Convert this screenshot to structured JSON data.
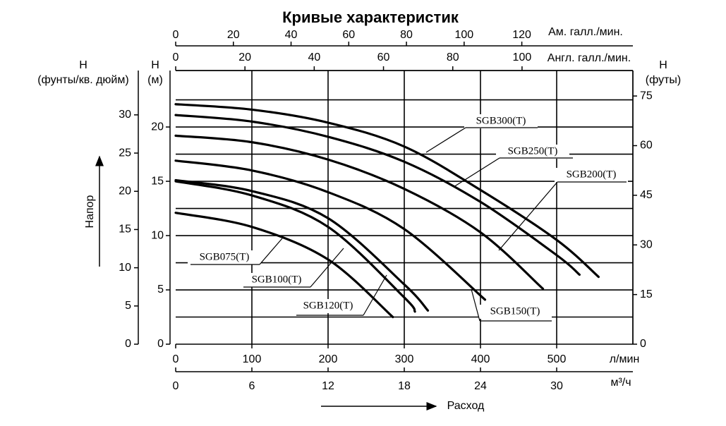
{
  "chart_data": {
    "type": "line",
    "title": "Кривые характеристик",
    "x_label": "л/мин",
    "x_title": "Расход",
    "xlim": [
      0,
      600
    ],
    "xticks": [
      0,
      100,
      200,
      300,
      400,
      500
    ],
    "y_label": "H",
    "y_unit": "(м)",
    "y_title": "Напор",
    "ylim": [
      0,
      25.2
    ],
    "yticks": [
      0,
      5,
      10,
      15,
      20
    ],
    "y_minor": [
      2.5,
      7.5,
      12.5,
      17.5,
      22.5
    ],
    "grid": true,
    "psi_axis": {
      "label": "H",
      "unit": "(фунты/кв. дюйм)",
      "lim": [
        0,
        35.8
      ],
      "ticks": [
        0,
        5,
        10,
        15,
        20,
        25,
        30
      ]
    },
    "ft_axis": {
      "label": "H",
      "unit": "(футы)",
      "lim": [
        0,
        82.7
      ],
      "ticks": [
        0,
        15,
        30,
        45,
        60,
        75
      ]
    },
    "us_gpm_axis": {
      "label": "Ам. галл./мин.",
      "lim": [
        0,
        158.5
      ],
      "ticks": [
        0,
        20,
        40,
        60,
        80,
        100,
        120
      ]
    },
    "imp_gpm_axis": {
      "label": "Англ. галл./мин.",
      "lim": [
        0,
        132
      ],
      "ticks": [
        0,
        20,
        40,
        60,
        80,
        100
      ]
    },
    "m3h_axis": {
      "label": "м³/ч",
      "lim": [
        0,
        36
      ],
      "ticks": [
        0,
        6,
        12,
        18,
        24,
        30
      ]
    },
    "series": [
      {
        "name": "SGB300(T)",
        "color": "#000000",
        "x": [
          0,
          100,
          200,
          300,
          400,
          500,
          555
        ],
        "values": [
          22.1,
          21.6,
          20.4,
          18.2,
          14.2,
          9.6,
          6.2
        ]
      },
      {
        "name": "SGB250(T)",
        "color": "#000000",
        "x": [
          0,
          100,
          200,
          300,
          400,
          500,
          530
        ],
        "values": [
          21.1,
          20.5,
          19.1,
          16.8,
          13.1,
          8.2,
          6.4
        ]
      },
      {
        "name": "SGB200(T)",
        "color": "#000000",
        "x": [
          0,
          100,
          200,
          300,
          400,
          482
        ],
        "values": [
          19.2,
          18.6,
          17.0,
          14.3,
          10.3,
          5.1
        ]
      },
      {
        "name": "SGB150(T)",
        "color": "#000000",
        "x": [
          0,
          100,
          200,
          300,
          406
        ],
        "values": [
          16.9,
          16.0,
          14.0,
          10.6,
          4.1
        ]
      },
      {
        "name": "SGB120(T)",
        "color": "#000000",
        "x": [
          0,
          100,
          200,
          300,
          331
        ],
        "values": [
          15.1,
          14.1,
          11.6,
          5.5,
          3.1
        ]
      },
      {
        "name": "SGB100(T)",
        "color": "#000000",
        "x": [
          0,
          100,
          200,
          300,
          314
        ],
        "values": [
          15.0,
          13.7,
          10.8,
          4.3,
          3.0
        ]
      },
      {
        "name": "SGB075(T)",
        "color": "#000000",
        "x": [
          0,
          100,
          200,
          285
        ],
        "values": [
          12.1,
          10.8,
          7.8,
          2.5
        ]
      }
    ]
  }
}
